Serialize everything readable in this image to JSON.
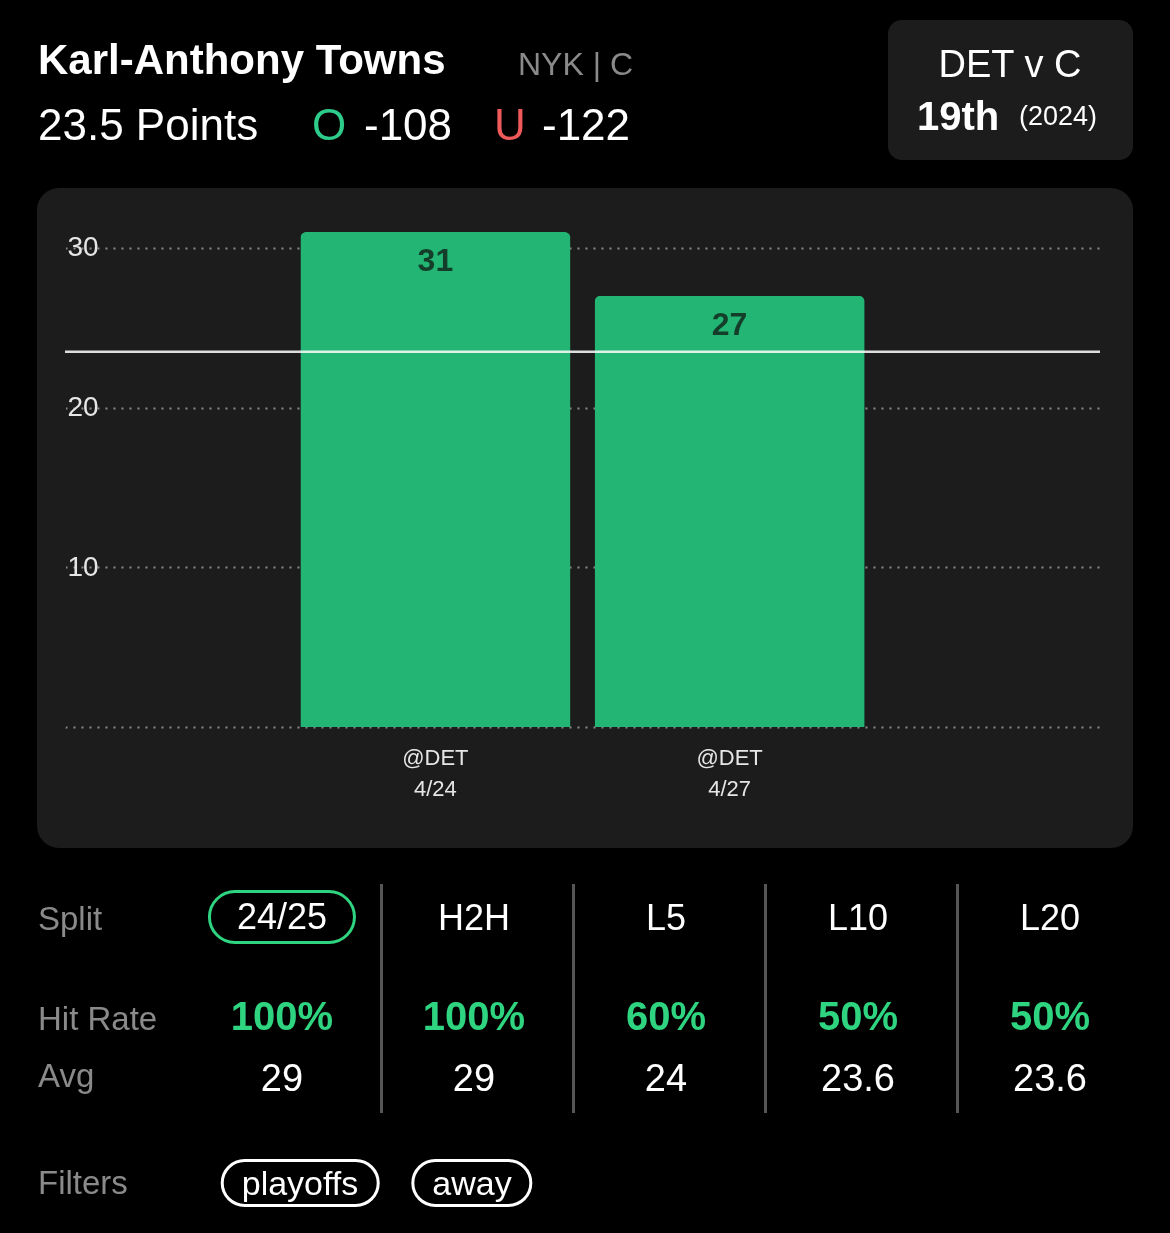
{
  "chart_data": {
    "type": "bar",
    "title": "Karl-Anthony Towns",
    "annotations": [
      "NYK | C",
      "23.5 Points",
      "O",
      "-108",
      "U",
      "-122",
      "DET v C",
      "19th",
      "(2024)",
      "Split",
      "24/25",
      "H2H",
      "L5",
      "L10",
      "L20",
      "Hit Rate",
      "100%",
      "100%",
      "60%",
      "50%",
      "50%",
      "Avg",
      "29",
      "29",
      "24",
      "23.6",
      "23.6",
      "Filters",
      "playoffs",
      "away"
    ],
    "categories": [
      "@DET\n4/24",
      "@DET\n4/27"
    ],
    "values": [
      31,
      27
    ],
    "color": "#22b573",
    "data_labels": true,
    "ylim": [
      0,
      32
    ],
    "yticks": [
      {
        "value": 0,
        "label": null
      },
      10,
      20,
      30
    ],
    "grid": "y",
    "ref_lines": [
      {
        "axis": "y",
        "value": 23.5,
        "color": "#ffffff"
      }
    ]
  }
}
